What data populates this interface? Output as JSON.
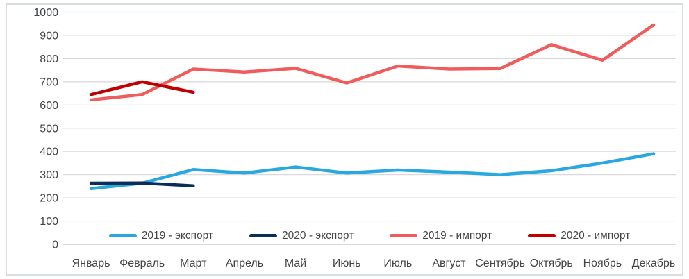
{
  "chart_data": {
    "type": "line",
    "title": "",
    "xlabel": "",
    "ylabel": "",
    "categories": [
      "Январь",
      "Февраль",
      "Март",
      "Апрель",
      "Май",
      "Июнь",
      "Июль",
      "Август",
      "Сентябрь",
      "Октябрь",
      "Ноябрь",
      "Декабрь"
    ],
    "series": [
      {
        "name": "2019 - экспорт",
        "color": "#29A8E0",
        "values": [
          240,
          263,
          322,
          307,
          333,
          307,
          320,
          311,
          300,
          317,
          350,
          390
        ]
      },
      {
        "name": "2020 - экспорт",
        "color": "#0B2E59",
        "values": [
          263,
          264,
          252,
          null,
          null,
          null,
          null,
          null,
          null,
          null,
          null,
          null
        ]
      },
      {
        "name": "2019 - импорт",
        "color": "#F05C5C",
        "values": [
          622,
          645,
          755,
          742,
          758,
          695,
          768,
          755,
          757,
          860,
          793,
          945
        ]
      },
      {
        "name": "2020 - импорт",
        "color": "#C00000",
        "values": [
          645,
          700,
          655,
          null,
          null,
          null,
          null,
          null,
          null,
          null,
          null,
          null
        ]
      }
    ],
    "ylim": [
      0,
      1000
    ],
    "ytick_step": 100,
    "grid": true,
    "legend_position": "bottom-inside"
  },
  "colors": {
    "grid": "#d9d9d9",
    "zero_line": "#c6c6c6",
    "tick_text": "#454545",
    "frame_border": "#ccd3d9",
    "background": "#ffffff"
  }
}
